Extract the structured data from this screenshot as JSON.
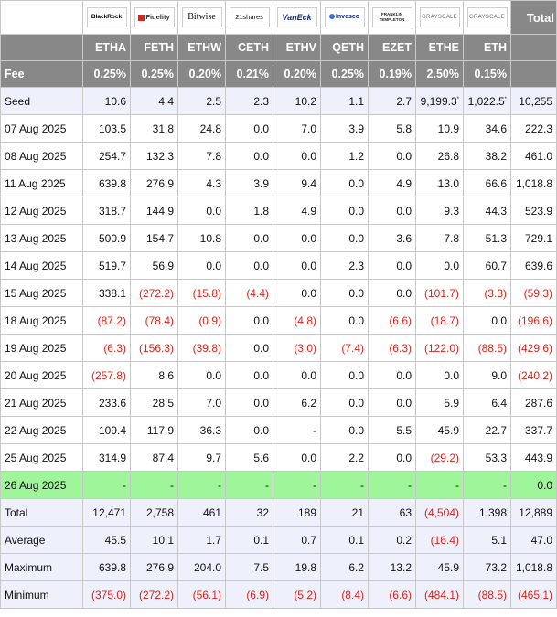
{
  "header": {
    "total_label": "Total",
    "fee_label": "Fee"
  },
  "funds": [
    {
      "issuer": "BlackRock",
      "ticker": "ETHA",
      "fee": "0.25%"
    },
    {
      "issuer": "Fidelity",
      "ticker": "FETH",
      "fee": "0.25%"
    },
    {
      "issuer": "Bitwise",
      "ticker": "ETHW",
      "fee": "0.20%"
    },
    {
      "issuer": "21shares",
      "ticker": "CETH",
      "fee": "0.21%"
    },
    {
      "issuer": "VanEck",
      "ticker": "ETHV",
      "fee": "0.20%"
    },
    {
      "issuer": "Invesco",
      "ticker": "QETH",
      "fee": "0.25%"
    },
    {
      "issuer": "FRANKLIN TEMPLETON",
      "ticker": "EZET",
      "fee": "0.19%"
    },
    {
      "issuer": "GRAYSCALE",
      "ticker": "ETHE",
      "fee": "2.50%"
    },
    {
      "issuer": "GRAYSCALE",
      "ticker": "ETH",
      "fee": "0.15%"
    }
  ],
  "seed_marker": "*",
  "rows": [
    {
      "label": "Seed",
      "values": [
        "10.6",
        "4.4",
        "2.5",
        "2.3",
        "10.2",
        "1.1",
        "2.7",
        "9,199.3",
        "1,022.5",
        "10,255"
      ]
    },
    {
      "label": "07 Aug 2025",
      "values": [
        "103.5",
        "31.8",
        "24.8",
        "0.0",
        "7.0",
        "3.9",
        "5.8",
        "10.9",
        "34.6",
        "222.3"
      ]
    },
    {
      "label": "08 Aug 2025",
      "values": [
        "254.7",
        "132.3",
        "7.8",
        "0.0",
        "0.0",
        "1.2",
        "0.0",
        "26.8",
        "38.2",
        "461.0"
      ]
    },
    {
      "label": "11 Aug 2025",
      "values": [
        "639.8",
        "276.9",
        "4.3",
        "3.9",
        "9.4",
        "0.0",
        "4.9",
        "13.0",
        "66.6",
        "1,018.8"
      ]
    },
    {
      "label": "12 Aug 2025",
      "values": [
        "318.7",
        "144.9",
        "0.0",
        "1.8",
        "4.9",
        "0.0",
        "0.0",
        "9.3",
        "44.3",
        "523.9"
      ]
    },
    {
      "label": "13 Aug 2025",
      "values": [
        "500.9",
        "154.7",
        "10.8",
        "0.0",
        "0.0",
        "0.0",
        "3.6",
        "7.8",
        "51.3",
        "729.1"
      ]
    },
    {
      "label": "14 Aug 2025",
      "values": [
        "519.7",
        "56.9",
        "0.0",
        "0.0",
        "0.0",
        "2.3",
        "0.0",
        "0.0",
        "60.7",
        "639.6"
      ]
    },
    {
      "label": "15 Aug 2025",
      "values": [
        "338.1",
        "(272.2)",
        "(15.8)",
        "(4.4)",
        "0.0",
        "0.0",
        "0.0",
        "(101.7)",
        "(3.3)",
        "(59.3)"
      ]
    },
    {
      "label": "18 Aug 2025",
      "values": [
        "(87.2)",
        "(78.4)",
        "(0.9)",
        "0.0",
        "(4.8)",
        "0.0",
        "(6.6)",
        "(18.7)",
        "0.0",
        "(196.6)"
      ]
    },
    {
      "label": "19 Aug 2025",
      "values": [
        "(6.3)",
        "(156.3)",
        "(39.8)",
        "0.0",
        "(3.0)",
        "(7.4)",
        "(6.3)",
        "(122.0)",
        "(88.5)",
        "(429.6)"
      ]
    },
    {
      "label": "20 Aug 2025",
      "values": [
        "(257.8)",
        "8.6",
        "0.0",
        "0.0",
        "0.0",
        "0.0",
        "0.0",
        "0.0",
        "9.0",
        "(240.2)"
      ]
    },
    {
      "label": "21 Aug 2025",
      "values": [
        "233.6",
        "28.5",
        "7.0",
        "0.0",
        "6.2",
        "0.0",
        "0.0",
        "5.9",
        "6.4",
        "287.6"
      ]
    },
    {
      "label": "22 Aug 2025",
      "values": [
        "109.4",
        "117.9",
        "36.3",
        "0.0",
        "-",
        "0.0",
        "5.5",
        "45.9",
        "22.7",
        "337.7"
      ]
    },
    {
      "label": "25 Aug 2025",
      "values": [
        "314.9",
        "87.4",
        "9.7",
        "5.6",
        "0.0",
        "2.2",
        "0.0",
        "(29.2)",
        "53.3",
        "443.9"
      ]
    },
    {
      "label": "26 Aug 2025",
      "values": [
        "-",
        "-",
        "-",
        "-",
        "-",
        "-",
        "-",
        "-",
        "-",
        "0.0"
      ]
    },
    {
      "label": "Total",
      "values": [
        "12,471",
        "2,758",
        "461",
        "32",
        "189",
        "21",
        "63",
        "(4,504)",
        "1,398",
        "12,889"
      ]
    },
    {
      "label": "Average",
      "values": [
        "45.5",
        "10.1",
        "1.7",
        "0.1",
        "0.7",
        "0.1",
        "0.2",
        "(16.4)",
        "5.1",
        "47.0"
      ]
    },
    {
      "label": "Maximum",
      "values": [
        "639.8",
        "276.9",
        "204.0",
        "7.5",
        "19.8",
        "6.2",
        "13.2",
        "45.9",
        "73.2",
        "1,018.8"
      ]
    },
    {
      "label": "Minimum",
      "values": [
        "(375.0)",
        "(272.2)",
        "(56.1)",
        "(6.9)",
        "(5.2)",
        "(8.4)",
        "(6.6)",
        "(484.1)",
        "(88.5)",
        "(465.1)"
      ]
    }
  ],
  "colors": {
    "header_bg": "#888888",
    "seed_row_bg": "#eef1fb",
    "latest_row_bg": "#9ef59a",
    "summary_row_bg": "#eef1fb",
    "negative_text": "#e0221b"
  }
}
